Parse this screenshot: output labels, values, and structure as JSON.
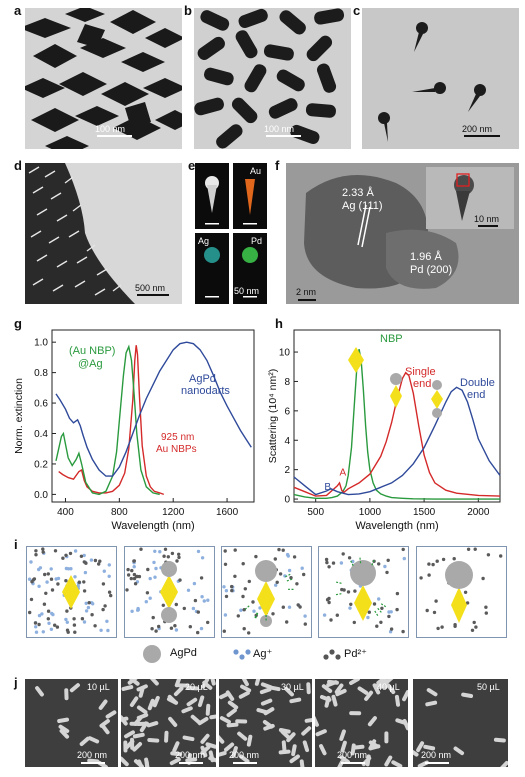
{
  "panels": {
    "a": {
      "letter": "a",
      "scale": "100 nm"
    },
    "b": {
      "letter": "b",
      "scale": "100 nm"
    },
    "c": {
      "letter": "c",
      "scale": "200 nm"
    },
    "d": {
      "letter": "d",
      "scale": "500 nm"
    },
    "e": {
      "letter": "e",
      "labels": [
        "Au",
        "Ag",
        "Pd"
      ],
      "scale": "50 nm"
    },
    "f": {
      "letter": "f",
      "lattice1": "2.33 Å",
      "lattice1_plane": "Ag (111)",
      "lattice2": "1.96 Å",
      "lattice2_plane": "Pd (200)",
      "scale_main": "2 nm",
      "scale_inset": "10 nm"
    },
    "g": {
      "letter": "g"
    },
    "h": {
      "letter": "h"
    },
    "i": {
      "letter": "i",
      "legend": {
        "agpd": "AgPd",
        "ag": "Ag⁺",
        "pd": "Pd²⁺"
      }
    },
    "j": {
      "letter": "j",
      "volumes": [
        "10 µL",
        "20 µL",
        "30 µL",
        "40 µL",
        "50 µL"
      ],
      "scale": "200 nm"
    }
  },
  "chart_data": [
    {
      "type": "line",
      "panel": "g",
      "xlabel": "Wavelength (nm)",
      "ylabel": "Norm. extinction",
      "xlim": [
        300,
        1800
      ],
      "ylim": [
        -0.05,
        1.08
      ],
      "xticks": [
        400,
        800,
        1200,
        1600
      ],
      "yticks": [
        0.0,
        0.2,
        0.4,
        0.6,
        0.8,
        1.0
      ],
      "annotations": {
        "green": [
          "(Au NBP)",
          "@Ag"
        ],
        "red": [
          "925 nm",
          "Au NBPs"
        ],
        "blue": [
          "AgPd",
          "nanodarts"
        ]
      },
      "series": [
        {
          "color": "#d42a2a",
          "x": [
            350,
            380,
            420,
            460,
            500,
            520,
            540,
            560,
            600,
            650,
            700,
            750,
            800,
            840,
            870,
            900,
            915,
            925,
            935,
            950,
            970,
            1000,
            1030,
            1060,
            1100,
            1130
          ],
          "y": [
            0.15,
            0.13,
            0.11,
            0.1,
            0.15,
            0.16,
            0.09,
            0.05,
            0.02,
            0.01,
            0.01,
            0.02,
            0.06,
            0.14,
            0.3,
            0.62,
            0.88,
            0.98,
            0.92,
            0.64,
            0.32,
            0.12,
            0.05,
            0.02,
            0.01,
            0.0
          ]
        },
        {
          "color": "#2a9a3e",
          "x": [
            330,
            350,
            370,
            385,
            400,
            420,
            450,
            480,
            500,
            520,
            550,
            600,
            650,
            700,
            750,
            780,
            800,
            830,
            850,
            870,
            890,
            910,
            930,
            960,
            1000,
            1050,
            1100
          ],
          "y": [
            0.22,
            0.3,
            0.38,
            0.4,
            0.33,
            0.24,
            0.19,
            0.23,
            0.27,
            0.2,
            0.08,
            0.01,
            0.0,
            0.02,
            0.12,
            0.28,
            0.48,
            0.78,
            0.93,
            0.97,
            0.88,
            0.66,
            0.4,
            0.16,
            0.05,
            0.01,
            0.0
          ]
        },
        {
          "color": "#2f4a9a",
          "x": [
            330,
            360,
            400,
            430,
            460,
            490,
            510,
            530,
            560,
            600,
            650,
            700,
            750,
            800,
            850,
            900,
            950,
            1000,
            1050,
            1100,
            1150,
            1200,
            1250,
            1300,
            1350,
            1400,
            1450,
            1500,
            1550,
            1600,
            1650,
            1700,
            1750,
            1780
          ],
          "y": [
            0.66,
            0.62,
            0.56,
            0.5,
            0.47,
            0.49,
            0.45,
            0.39,
            0.31,
            0.23,
            0.16,
            0.12,
            0.12,
            0.18,
            0.28,
            0.4,
            0.52,
            0.63,
            0.72,
            0.81,
            0.88,
            0.95,
            0.99,
            1.0,
            0.99,
            0.95,
            0.88,
            0.78,
            0.67,
            0.58,
            0.5,
            0.42,
            0.35,
            0.31
          ]
        }
      ]
    },
    {
      "type": "line",
      "panel": "h",
      "xlabel": "Wavelength (nm)",
      "ylabel": "Scattering (10⁴ nm²)",
      "xlim": [
        300,
        2200
      ],
      "ylim": [
        -0.2,
        11.5
      ],
      "xticks": [
        500,
        1000,
        1500,
        2000
      ],
      "yticks": [
        0,
        2,
        4,
        6,
        8,
        10
      ],
      "annotations": {
        "nbp": "NBP",
        "single": [
          "Single",
          "end"
        ],
        "double": [
          "Double",
          "end"
        ],
        "b": "B",
        "a": "A"
      },
      "series": [
        {
          "name": "NBP",
          "color": "#2a9a3e",
          "x": [
            300,
            400,
            500,
            600,
            650,
            700,
            750,
            780,
            800,
            830,
            860,
            880,
            900,
            920,
            940,
            960,
            980,
            1000,
            1030,
            1060,
            1100,
            1150,
            1200,
            1300,
            1400,
            1600,
            2200
          ],
          "y": [
            0.3,
            0.15,
            0.05,
            0.05,
            0.1,
            0.2,
            0.5,
            0.9,
            1.6,
            3.5,
            6.8,
            9.0,
            10.2,
            9.4,
            7.4,
            5.0,
            3.2,
            2.0,
            1.1,
            0.6,
            0.35,
            0.2,
            0.1,
            0.05,
            0.02,
            0.0,
            0.0
          ]
        },
        {
          "name": "Single end",
          "color": "#d42a2a",
          "x": [
            300,
            400,
            500,
            600,
            700,
            720,
            740,
            760,
            800,
            900,
            1000,
            1100,
            1150,
            1200,
            1250,
            1300,
            1330,
            1360,
            1400,
            1450,
            1500,
            1550,
            1600,
            1700,
            1800,
            2000,
            2200
          ],
          "y": [
            0.8,
            0.5,
            0.2,
            0.25,
            0.9,
            1.1,
            0.6,
            0.45,
            0.7,
            1.1,
            1.7,
            2.9,
            3.9,
            5.2,
            6.8,
            8.2,
            8.6,
            8.4,
            7.2,
            5.0,
            3.0,
            1.8,
            1.1,
            0.6,
            0.4,
            0.25,
            0.2
          ]
        },
        {
          "name": "Double end",
          "color": "#2f4a9a",
          "x": [
            300,
            400,
            500,
            600,
            640,
            700,
            800,
            900,
            1000,
            1100,
            1200,
            1300,
            1400,
            1500,
            1600,
            1700,
            1750,
            1800,
            1850,
            1900,
            1950,
            2000,
            2100,
            2200
          ],
          "y": [
            1.5,
            0.9,
            0.3,
            0.55,
            0.7,
            0.5,
            0.3,
            0.35,
            0.5,
            0.8,
            1.1,
            1.6,
            2.4,
            3.5,
            5.0,
            6.6,
            7.3,
            7.6,
            7.4,
            6.6,
            5.4,
            4.1,
            2.6,
            1.6
          ]
        }
      ]
    }
  ]
}
